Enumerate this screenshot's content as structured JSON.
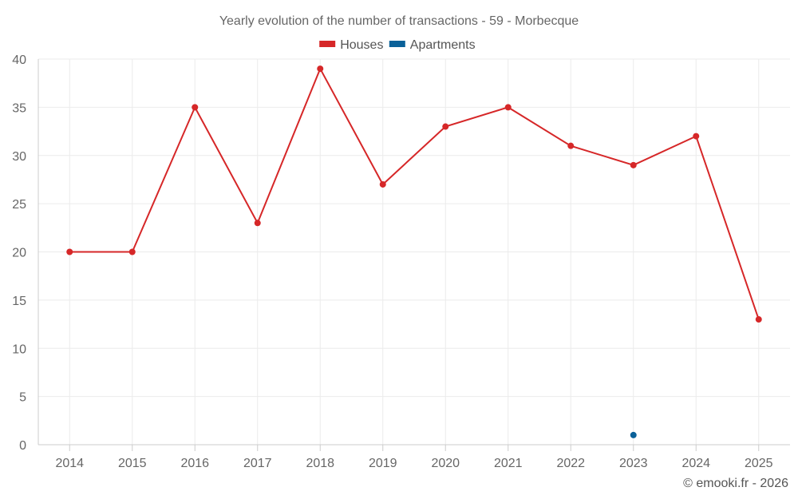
{
  "chart_data": {
    "type": "line",
    "title": "Yearly evolution of the number of transactions - 59 - Morbecque",
    "categories": [
      "2014",
      "2015",
      "2016",
      "2017",
      "2018",
      "2019",
      "2020",
      "2021",
      "2022",
      "2023",
      "2024",
      "2025"
    ],
    "series": [
      {
        "name": "Houses",
        "color": "#d62728",
        "values": [
          20,
          20,
          35,
          23,
          39,
          27,
          33,
          35,
          31,
          29,
          32,
          13
        ]
      },
      {
        "name": "Apartments",
        "color": "#0a6199",
        "values": [
          null,
          null,
          null,
          null,
          null,
          null,
          null,
          null,
          null,
          1,
          null,
          null
        ]
      }
    ],
    "ylim": [
      0,
      40
    ],
    "yticks": [
      0,
      5,
      10,
      15,
      20,
      25,
      30,
      35,
      40
    ],
    "legend_position": "top-center",
    "grid": true
  },
  "credit": "© emooki.fr - 2026"
}
